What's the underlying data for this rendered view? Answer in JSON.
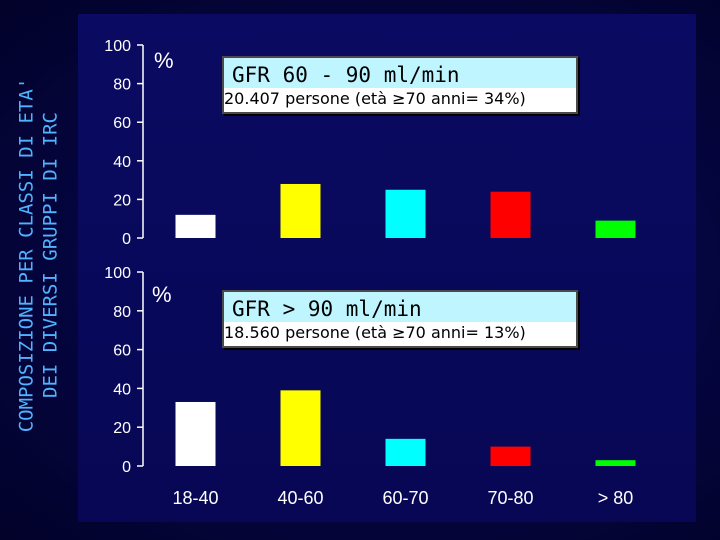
{
  "side_title": {
    "line1": "COMPOSIZIONE PER CLASSI DI ETA'",
    "line2": "DEI DIVERSI GRUPPI DI IRC"
  },
  "chart_data": [
    {
      "type": "bar",
      "unit_label": "%",
      "title": "GFR  60 - 90 ml/min",
      "subtitle": "20.407 persone (età ≥70 anni= 34%)",
      "categories": [
        "18-40",
        "40-60",
        "60-70",
        "70-80",
        "> 80"
      ],
      "values": [
        12,
        28,
        25,
        24,
        9
      ],
      "colors": [
        "#ffffff",
        "#ffff00",
        "#00ffff",
        "#ff0000",
        "#00ff00"
      ],
      "ylim": [
        0,
        100
      ],
      "yticks": [
        0,
        20,
        40,
        60,
        80,
        100
      ]
    },
    {
      "type": "bar",
      "unit_label": "%",
      "title": "GFR > 90 ml/min",
      "subtitle": "18.560 persone (età ≥70 anni= 13%)",
      "categories": [
        "18-40",
        "40-60",
        "60-70",
        "70-80",
        "> 80"
      ],
      "values": [
        33,
        39,
        14,
        10,
        3
      ],
      "colors": [
        "#ffffff",
        "#ffff00",
        "#00ffff",
        "#ff0000",
        "#00ff00"
      ],
      "ylim": [
        0,
        100
      ],
      "yticks": [
        0,
        20,
        40,
        60,
        80,
        100
      ]
    }
  ]
}
